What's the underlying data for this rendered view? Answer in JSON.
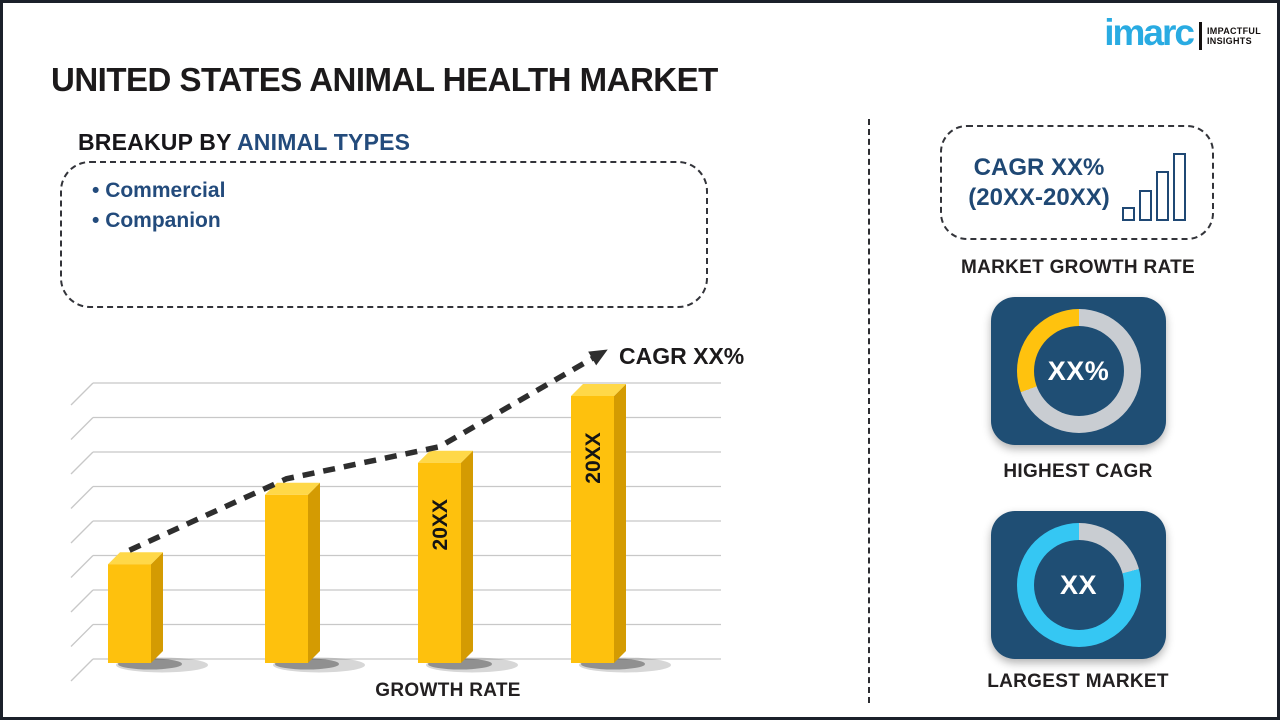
{
  "page": {
    "title": "UNITED STATES ANIMAL HEALTH MARKET"
  },
  "logo": {
    "brand": "imarc",
    "tagline_line1": "IMPACTFUL",
    "tagline_line2": "INSIGHTS",
    "brand_color": "#29ABE2"
  },
  "breakup": {
    "heading_prefix": "BREAKUP BY ",
    "heading_highlight": "ANIMAL TYPES",
    "items": [
      "Commercial",
      "Companion"
    ]
  },
  "chart_data": {
    "type": "bar",
    "title": "",
    "categories": [
      "",
      "",
      "20XX",
      "20XX"
    ],
    "values": [
      37,
      63,
      75,
      100
    ],
    "bar_labels": [
      "",
      "",
      "20XX",
      "20XX"
    ],
    "xlabel": "GROWTH RATE",
    "ylabel": "",
    "ylim": [
      0,
      105
    ],
    "gridlines": 9,
    "grid": true,
    "legend": false,
    "bar_color_front": "#FEC10D",
    "bar_color_top": "#FFD848",
    "bar_color_side": "#D49B02",
    "grid_color": "#c8c8c8",
    "trend": {
      "label": "CAGR XX%",
      "type": "dashed-arrow",
      "color": "#2E2E2E"
    }
  },
  "right_panel": {
    "cagr_box": {
      "line1": "CAGR XX%",
      "line2": "(20XX-20XX)",
      "icon": "bar-chart-icon",
      "icon_bar_heights": [
        14,
        31,
        50,
        68
      ],
      "accent_color": "#1F4874"
    },
    "market_growth_label": "MARKET GROWTH RATE",
    "donuts": [
      {
        "value_label": "XX%",
        "caption": "HIGHEST CAGR",
        "tile_color": "#1F4E74",
        "segment_color": "#FFC20E",
        "ring_color": "#C9CDD2",
        "segment_start_deg": 250,
        "segment_sweep_deg": 110
      },
      {
        "value_label": "XX",
        "caption": "LARGEST MARKET",
        "tile_color": "#1F4E74",
        "segment_color": "#C9CDD2",
        "ring_color": "#35C7F3",
        "segment_start_deg": 0,
        "segment_sweep_deg": 75
      }
    ]
  }
}
